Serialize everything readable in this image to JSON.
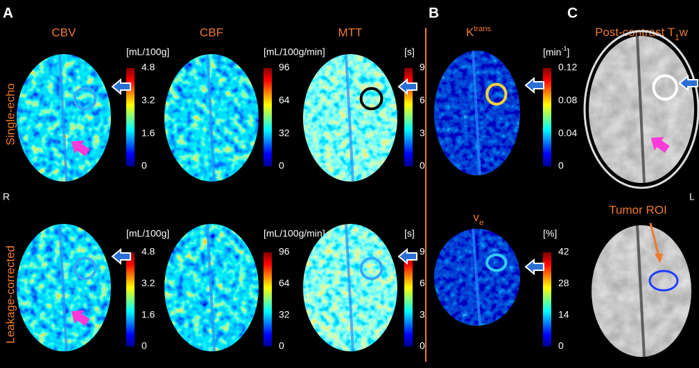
{
  "panel_labels": [
    "A",
    "B",
    "C"
  ],
  "row_labels": [
    "Single-echo",
    "Leakage-corrected"
  ],
  "side_labels": [
    "R",
    "L"
  ],
  "maps": [
    {
      "title": "CBV",
      "unit": "[mL/100g]",
      "ticks": [
        4.8,
        3.2,
        1.6,
        0
      ]
    },
    {
      "title": "CBF",
      "unit": "[mL/100g/min]",
      "ticks": [
        96,
        64,
        32,
        0
      ]
    },
    {
      "title": "MTT",
      "unit": "[s]",
      "ticks": [
        9,
        6,
        3,
        0
      ]
    }
  ],
  "dce": [
    {
      "title": {
        "base": "K",
        "sup": "trans"
      },
      "unit": {
        "base": "[min",
        "sup": "-1",
        "end": "]"
      },
      "ticks": [
        0.12,
        0.08,
        0.04,
        0
      ]
    },
    {
      "title": {
        "base": "v",
        "sub": "e"
      },
      "unit": "[%]",
      "ticks": [
        42,
        28,
        14,
        0
      ]
    }
  ],
  "anatomy": {
    "title": {
      "base": "Post-contrast T",
      "sub": "1",
      "end": "w"
    },
    "roi_label": "Tumor ROI"
  }
}
